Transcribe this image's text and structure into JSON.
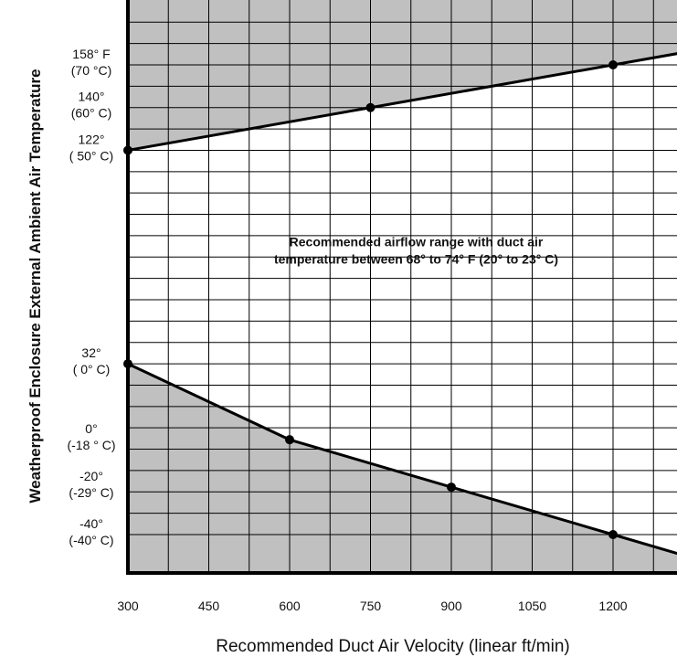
{
  "chart_data": {
    "type": "line",
    "title": "",
    "xlabel": "Recommended Duct Air Velocity (linear ft/min)",
    "ylabel": "Weatherproof Enclosure External Ambient Air Temperature",
    "xlim": [
      300,
      1320
    ],
    "ylim": [
      -50,
      178
    ],
    "grid": true,
    "x_ticks": [
      300,
      450,
      600,
      750,
      900,
      1050,
      1200
    ],
    "y_ticks": [
      {
        "value": 158,
        "line1": "158° F",
        "line2": "(70 °C)"
      },
      {
        "value": 140,
        "line1": "140°",
        "line2": "(60° C)"
      },
      {
        "value": 122,
        "line1": "122°",
        "line2": "( 50° C)"
      },
      {
        "value": 32,
        "line1": "32°",
        "line2": "( 0° C)"
      },
      {
        "value": 0,
        "line1": "0°",
        "line2": "(-18 ° C)"
      },
      {
        "value": -20,
        "line1": "-20°",
        "line2": "(-29° C)"
      },
      {
        "value": -40,
        "line1": "-40°",
        "line2": "(-40° C)"
      }
    ],
    "series": [
      {
        "x": [
          300,
          750,
          1200,
          1320
        ],
        "y": [
          122,
          140,
          158,
          162.8
        ],
        "markers": [
          300,
          750,
          1200
        ]
      },
      {
        "x": [
          300,
          600,
          900,
          1200,
          1320
        ],
        "y": [
          32,
          0,
          -20,
          -40,
          -48
        ],
        "markers": [
          300,
          600,
          900,
          1200
        ]
      }
    ],
    "annotation": {
      "line1": "Recommended airflow range with duct air",
      "line2": "temperature between 68° to 74° F (20° to 23° C)",
      "x": 750,
      "y": 77
    },
    "colors": {
      "shade": "#c0c0c0",
      "line": "#000000",
      "grid": "#000000"
    }
  }
}
